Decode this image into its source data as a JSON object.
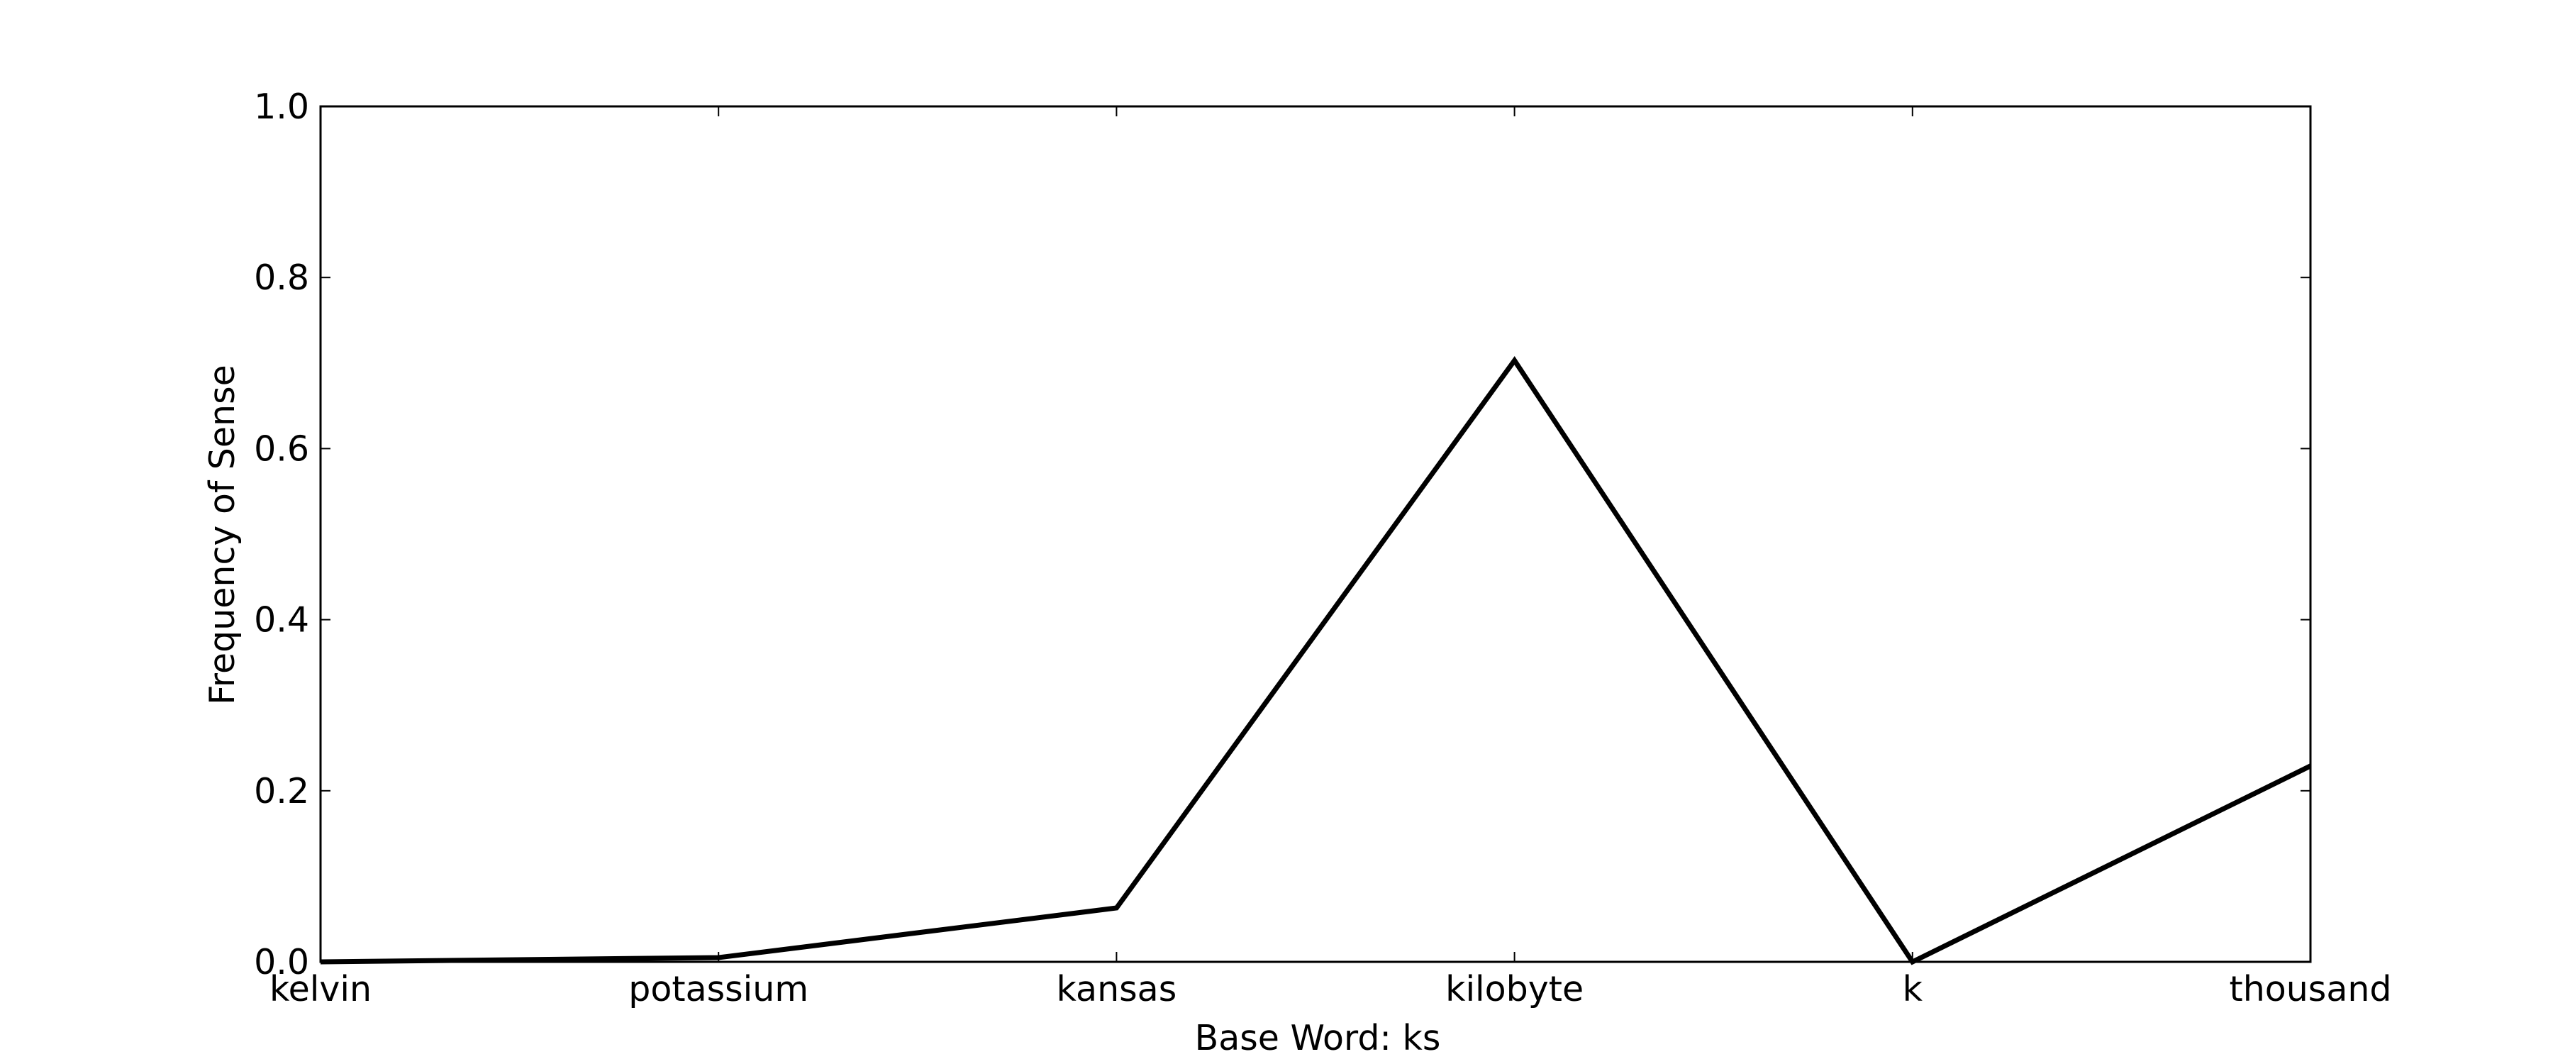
{
  "chart_data": {
    "type": "line",
    "title": "",
    "xlabel": "Base Word: ks",
    "ylabel": "Frequency of Sense",
    "categories": [
      "kelvin",
      "potassium",
      "kansas",
      "kilobyte",
      "k",
      "thousand"
    ],
    "series": [
      {
        "values": [
          0.0,
          0.005,
          0.063,
          0.703,
          0.0,
          0.229
        ]
      }
    ],
    "ylim": [
      0.0,
      1.0
    ],
    "yticks": [
      "0.0",
      "0.2",
      "0.4",
      "0.6",
      "0.8",
      "1.0"
    ],
    "grid": false,
    "line_color": "#000000"
  }
}
